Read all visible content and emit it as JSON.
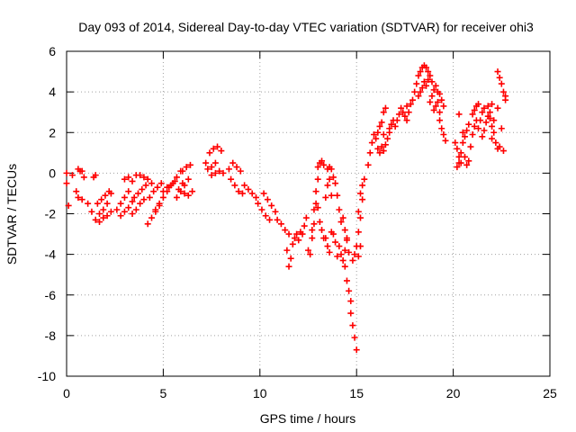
{
  "chart_data": {
    "type": "scatter",
    "title": "Day 093 of 2014, Sidereal Day-to-day VTEC variation (SDTVAR) for receiver ohi3",
    "xlabel": "GPS time / hours",
    "ylabel": "SDTVAR / TECUs",
    "xlim": [
      0,
      25
    ],
    "ylim": [
      -10,
      6
    ],
    "xticks": [
      0,
      5,
      10,
      15,
      20,
      25
    ],
    "yticks": [
      -10,
      -8,
      -6,
      -4,
      -2,
      0,
      2,
      4,
      6
    ],
    "grid": true,
    "marker": "+",
    "series": [
      {
        "name": "SDTVAR",
        "color": "#ff0000",
        "points": [
          [
            0.0,
            0.0
          ],
          [
            0.0,
            -0.5
          ],
          [
            0.1,
            -1.6
          ],
          [
            0.3,
            -0.1
          ],
          [
            0.6,
            0.2
          ],
          [
            0.7,
            0.1
          ],
          [
            0.8,
            0.1
          ],
          [
            0.9,
            -0.2
          ],
          [
            0.5,
            -0.9
          ],
          [
            0.6,
            -1.2
          ],
          [
            0.8,
            -1.3
          ],
          [
            1.1,
            -1.5
          ],
          [
            1.4,
            -0.2
          ],
          [
            1.5,
            -0.1
          ],
          [
            1.3,
            -1.9
          ],
          [
            1.5,
            -2.3
          ],
          [
            1.7,
            -2.0
          ],
          [
            1.9,
            -1.8
          ],
          [
            2.1,
            -1.5
          ],
          [
            2.3,
            -1.0
          ],
          [
            1.6,
            -1.5
          ],
          [
            1.8,
            -1.3
          ],
          [
            2.0,
            -1.1
          ],
          [
            2.2,
            -0.9
          ],
          [
            1.7,
            -2.4
          ],
          [
            1.9,
            -2.2
          ],
          [
            2.1,
            -2.1
          ],
          [
            2.3,
            -1.9
          ],
          [
            2.6,
            -1.8
          ],
          [
            2.8,
            -1.5
          ],
          [
            3.0,
            -1.2
          ],
          [
            3.2,
            -0.9
          ],
          [
            3.0,
            -0.3
          ],
          [
            3.2,
            -0.2
          ],
          [
            3.4,
            -0.4
          ],
          [
            3.6,
            -0.1
          ],
          [
            2.8,
            -2.1
          ],
          [
            3.0,
            -1.9
          ],
          [
            3.2,
            -1.7
          ],
          [
            3.4,
            -1.4
          ],
          [
            3.5,
            -1.2
          ],
          [
            3.7,
            -1.0
          ],
          [
            3.9,
            -0.8
          ],
          [
            4.1,
            -0.6
          ],
          [
            3.4,
            -2.0
          ],
          [
            3.6,
            -1.8
          ],
          [
            3.8,
            -1.5
          ],
          [
            4.0,
            -1.3
          ],
          [
            3.8,
            -0.1
          ],
          [
            4.0,
            -0.2
          ],
          [
            4.2,
            -0.3
          ],
          [
            4.4,
            -0.5
          ],
          [
            4.2,
            -2.5
          ],
          [
            4.4,
            -2.2
          ],
          [
            4.6,
            -1.9
          ],
          [
            4.8,
            -1.6
          ],
          [
            4.3,
            -1.2
          ],
          [
            4.5,
            -0.9
          ],
          [
            4.7,
            -0.7
          ],
          [
            4.9,
            -0.5
          ],
          [
            4.6,
            -1.8
          ],
          [
            4.8,
            -1.5
          ],
          [
            5.0,
            -1.2
          ],
          [
            5.2,
            -0.9
          ],
          [
            5.0,
            -0.9
          ],
          [
            5.2,
            -0.7
          ],
          [
            5.4,
            -0.6
          ],
          [
            5.6,
            -0.4
          ],
          [
            5.3,
            -0.7
          ],
          [
            5.5,
            -0.5
          ],
          [
            5.7,
            -0.2
          ],
          [
            5.9,
            0.1
          ],
          [
            5.7,
            -1.2
          ],
          [
            5.9,
            -0.9
          ],
          [
            6.1,
            -0.6
          ],
          [
            6.3,
            -0.3
          ],
          [
            6.0,
            0.1
          ],
          [
            6.2,
            0.3
          ],
          [
            6.4,
            0.4
          ],
          [
            6.1,
            -1.0
          ],
          [
            6.3,
            -1.1
          ],
          [
            6.5,
            -0.9
          ],
          [
            5.8,
            -0.8
          ],
          [
            6.0,
            -0.5
          ],
          [
            7.2,
            0.5
          ],
          [
            7.3,
            0.2
          ],
          [
            7.5,
            0.3
          ],
          [
            7.7,
            0.5
          ],
          [
            7.4,
            1.0
          ],
          [
            7.6,
            1.2
          ],
          [
            7.8,
            1.3
          ],
          [
            8.0,
            1.1
          ],
          [
            7.5,
            -0.1
          ],
          [
            7.7,
            0.0
          ],
          [
            7.9,
            0.1
          ],
          [
            8.1,
            0.0
          ],
          [
            8.4,
            0.2
          ],
          [
            8.6,
            0.5
          ],
          [
            8.8,
            0.3
          ],
          [
            9.0,
            0.1
          ],
          [
            8.5,
            -0.3
          ],
          [
            8.7,
            -0.6
          ],
          [
            8.9,
            -0.9
          ],
          [
            9.1,
            -1.0
          ],
          [
            9.2,
            -0.6
          ],
          [
            9.4,
            -0.8
          ],
          [
            9.6,
            -1.0
          ],
          [
            9.8,
            -1.2
          ],
          [
            9.9,
            -1.5
          ],
          [
            10.1,
            -1.8
          ],
          [
            10.3,
            -2.1
          ],
          [
            10.5,
            -2.3
          ],
          [
            10.2,
            -1.0
          ],
          [
            10.4,
            -1.3
          ],
          [
            10.6,
            -1.6
          ],
          [
            10.8,
            -1.9
          ],
          [
            10.9,
            -2.3
          ],
          [
            11.1,
            -2.5
          ],
          [
            11.3,
            -2.8
          ],
          [
            11.5,
            -3.0
          ],
          [
            11.4,
            -3.8
          ],
          [
            11.5,
            -4.6
          ],
          [
            11.6,
            -4.2
          ],
          [
            11.7,
            -3.5
          ],
          [
            11.8,
            -3.2
          ],
          [
            11.9,
            -3.0
          ],
          [
            12.0,
            -3.3
          ],
          [
            12.1,
            -2.9
          ],
          [
            12.2,
            -3.0
          ],
          [
            12.3,
            -2.6
          ],
          [
            12.4,
            -2.2
          ],
          [
            12.5,
            -3.8
          ],
          [
            12.6,
            -4.0
          ],
          [
            12.7,
            -3.2
          ],
          [
            12.8,
            -2.5
          ],
          [
            12.9,
            -1.5
          ],
          [
            12.7,
            -2.8
          ],
          [
            12.8,
            -1.8
          ],
          [
            12.9,
            -0.9
          ],
          [
            13.0,
            -0.3
          ],
          [
            13.0,
            0.3
          ],
          [
            13.1,
            0.5
          ],
          [
            13.2,
            0.6
          ],
          [
            13.3,
            0.4
          ],
          [
            13.0,
            -1.7
          ],
          [
            13.1,
            -2.4
          ],
          [
            13.2,
            -2.8
          ],
          [
            13.3,
            -3.2
          ],
          [
            13.4,
            -1.2
          ],
          [
            13.5,
            -0.6
          ],
          [
            13.6,
            -0.3
          ],
          [
            13.7,
            -1.1
          ],
          [
            13.4,
            -3.2
          ],
          [
            13.5,
            -3.6
          ],
          [
            13.6,
            -3.9
          ],
          [
            13.7,
            -2.9
          ],
          [
            13.5,
            0.2
          ],
          [
            13.6,
            0.3
          ],
          [
            13.7,
            0.2
          ],
          [
            13.8,
            -0.2
          ],
          [
            13.8,
            -3.0
          ],
          [
            13.9,
            -3.4
          ],
          [
            14.0,
            -4.1
          ],
          [
            14.1,
            -3.6
          ],
          [
            13.9,
            -0.5
          ],
          [
            14.0,
            -1.1
          ],
          [
            14.1,
            -1.8
          ],
          [
            14.2,
            -2.4
          ],
          [
            14.2,
            -4.0
          ],
          [
            14.3,
            -4.3
          ],
          [
            14.4,
            -3.8
          ],
          [
            14.5,
            -3.3
          ],
          [
            14.3,
            -2.2
          ],
          [
            14.4,
            -2.8
          ],
          [
            14.5,
            -3.2
          ],
          [
            14.6,
            -3.9
          ],
          [
            14.4,
            -4.6
          ],
          [
            14.5,
            -5.3
          ],
          [
            14.6,
            -5.8
          ],
          [
            14.7,
            -6.3
          ],
          [
            14.7,
            -6.9
          ],
          [
            14.8,
            -7.5
          ],
          [
            14.9,
            -8.1
          ],
          [
            15.0,
            -8.7
          ],
          [
            14.8,
            -4.3
          ],
          [
            14.9,
            -4.0
          ],
          [
            15.0,
            -3.6
          ],
          [
            15.1,
            -2.9
          ],
          [
            15.1,
            -4.1
          ],
          [
            15.2,
            -3.6
          ],
          [
            15.2,
            -2.2
          ],
          [
            15.3,
            -1.3
          ],
          [
            15.3,
            -0.6
          ],
          [
            15.4,
            -0.3
          ],
          [
            15.1,
            -1.9
          ],
          [
            15.2,
            -1.0
          ],
          [
            15.6,
            0.4
          ],
          [
            15.7,
            1.0
          ],
          [
            15.8,
            1.5
          ],
          [
            15.9,
            1.9
          ],
          [
            16.0,
            1.7
          ],
          [
            16.1,
            1.2
          ],
          [
            16.2,
            1.0
          ],
          [
            16.3,
            1.3
          ],
          [
            16.1,
            2.0
          ],
          [
            16.2,
            2.3
          ],
          [
            16.3,
            2.5
          ],
          [
            16.4,
            1.9
          ],
          [
            16.4,
            1.1
          ],
          [
            16.5,
            1.4
          ],
          [
            16.6,
            1.7
          ],
          [
            16.7,
            2.0
          ],
          [
            16.7,
            2.2
          ],
          [
            16.8,
            2.4
          ],
          [
            16.9,
            2.6
          ],
          [
            17.0,
            2.3
          ],
          [
            16.4,
            3.0
          ],
          [
            16.5,
            3.2
          ],
          [
            17.1,
            2.6
          ],
          [
            17.2,
            2.9
          ],
          [
            17.3,
            3.2
          ],
          [
            17.4,
            3.0
          ],
          [
            17.5,
            2.8
          ],
          [
            17.6,
            3.3
          ],
          [
            17.6,
            2.6
          ],
          [
            17.7,
            3.0
          ],
          [
            17.8,
            3.4
          ],
          [
            17.9,
            3.6
          ],
          [
            18.0,
            4.0
          ],
          [
            18.1,
            4.4
          ],
          [
            18.2,
            4.8
          ],
          [
            18.3,
            5.0
          ],
          [
            18.4,
            5.2
          ],
          [
            18.5,
            5.3
          ],
          [
            18.6,
            5.2
          ],
          [
            18.7,
            5.0
          ],
          [
            18.2,
            3.8
          ],
          [
            18.3,
            4.0
          ],
          [
            18.4,
            4.2
          ],
          [
            18.5,
            4.5
          ],
          [
            18.6,
            4.3
          ],
          [
            18.7,
            4.6
          ],
          [
            18.8,
            4.8
          ],
          [
            18.9,
            4.5
          ],
          [
            18.8,
            3.5
          ],
          [
            18.9,
            3.8
          ],
          [
            19.0,
            4.1
          ],
          [
            19.1,
            4.3
          ],
          [
            19.0,
            3.1
          ],
          [
            19.1,
            3.3
          ],
          [
            19.2,
            3.5
          ],
          [
            19.3,
            3.0
          ],
          [
            19.2,
            4.0
          ],
          [
            19.3,
            3.9
          ],
          [
            19.4,
            3.6
          ],
          [
            19.5,
            3.3
          ],
          [
            19.3,
            2.6
          ],
          [
            19.4,
            2.2
          ],
          [
            19.5,
            1.9
          ],
          [
            19.6,
            1.6
          ],
          [
            20.1,
            1.5
          ],
          [
            20.2,
            1.2
          ],
          [
            20.3,
            0.8
          ],
          [
            20.4,
            0.5
          ],
          [
            20.2,
            0.3
          ],
          [
            20.3,
            0.5
          ],
          [
            20.4,
            1.0
          ],
          [
            20.5,
            1.5
          ],
          [
            20.5,
            2.0
          ],
          [
            20.6,
            1.8
          ],
          [
            20.7,
            2.1
          ],
          [
            20.8,
            2.4
          ],
          [
            20.3,
            2.9
          ],
          [
            20.6,
            0.8
          ],
          [
            20.7,
            0.4
          ],
          [
            20.8,
            0.6
          ],
          [
            20.9,
            1.3
          ],
          [
            21.0,
            1.9
          ],
          [
            21.1,
            2.3
          ],
          [
            21.2,
            2.6
          ],
          [
            21.0,
            2.9
          ],
          [
            21.1,
            3.1
          ],
          [
            21.2,
            3.3
          ],
          [
            21.3,
            3.4
          ],
          [
            21.3,
            2.2
          ],
          [
            21.4,
            2.6
          ],
          [
            21.5,
            3.0
          ],
          [
            21.6,
            3.2
          ],
          [
            21.5,
            1.8
          ],
          [
            21.6,
            2.1
          ],
          [
            21.7,
            2.5
          ],
          [
            21.8,
            2.8
          ],
          [
            21.8,
            3.3
          ],
          [
            21.9,
            3.0
          ],
          [
            22.0,
            3.4
          ],
          [
            22.1,
            2.6
          ],
          [
            22.2,
            1.5
          ],
          [
            22.3,
            1.2
          ],
          [
            22.4,
            1.3
          ],
          [
            22.6,
            1.1
          ],
          [
            22.3,
            5.0
          ],
          [
            22.4,
            4.7
          ],
          [
            22.5,
            4.4
          ],
          [
            22.6,
            4.0
          ],
          [
            22.7,
            3.8
          ],
          [
            22.7,
            3.6
          ],
          [
            22.3,
            3.2
          ],
          [
            22.5,
            2.2
          ],
          [
            22.0,
            1.7
          ],
          [
            22.1,
            2.0
          ],
          [
            21.9,
            2.7
          ],
          [
            22.0,
            2.3
          ]
        ]
      }
    ]
  }
}
